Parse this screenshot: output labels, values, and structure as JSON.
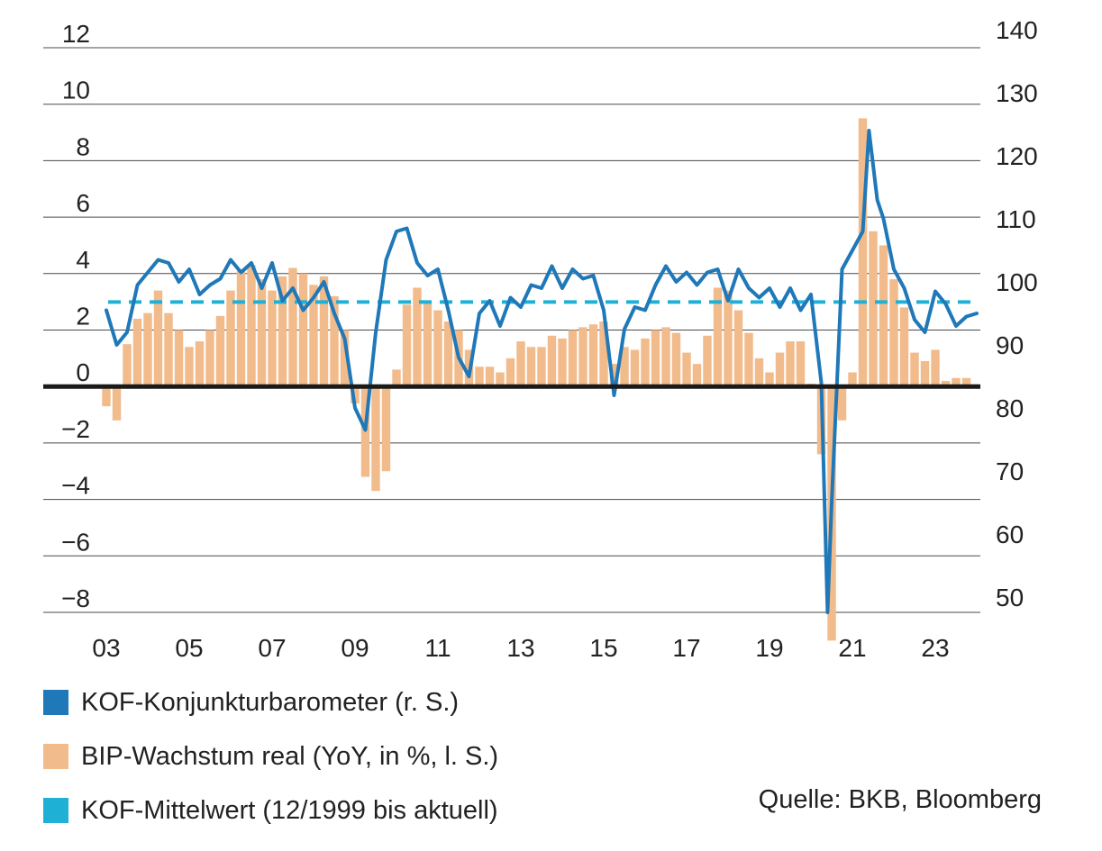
{
  "chart_data": {
    "type": "bar+line",
    "title": "",
    "left_axis": {
      "ticks": [
        "12",
        "10",
        "8",
        "6",
        "4",
        "2",
        "0",
        "−2",
        "−4",
        "−6",
        "−8"
      ],
      "range": [
        -8,
        12
      ]
    },
    "right_axis": {
      "ticks": [
        "140",
        "130",
        "120",
        "110",
        "100",
        "90",
        "80",
        "70",
        "60",
        "50"
      ],
      "range": [
        46,
        140
      ]
    },
    "x_axis": {
      "ticks": [
        "03",
        "05",
        "07",
        "09",
        "11",
        "13",
        "15",
        "17",
        "19",
        "21",
        "23"
      ],
      "range": [
        2003.0,
        2024.0
      ]
    },
    "series": [
      {
        "name": "KOF-Konjunkturbarometer (r. S.)",
        "axis": "right",
        "kind": "line",
        "color": "#1f78b8",
        "points": [
          [
            2003.0,
            95.5
          ],
          [
            2003.25,
            90.0
          ],
          [
            2003.5,
            92.0
          ],
          [
            2003.75,
            99.5
          ],
          [
            2004.0,
            101.5
          ],
          [
            2004.25,
            103.5
          ],
          [
            2004.5,
            103.0
          ],
          [
            2004.75,
            100.0
          ],
          [
            2005.0,
            102.0
          ],
          [
            2005.25,
            98.0
          ],
          [
            2005.5,
            99.5
          ],
          [
            2005.75,
            100.5
          ],
          [
            2006.0,
            103.5
          ],
          [
            2006.25,
            101.5
          ],
          [
            2006.5,
            103.0
          ],
          [
            2006.75,
            99.0
          ],
          [
            2007.0,
            103.0
          ],
          [
            2007.25,
            97.0
          ],
          [
            2007.5,
            99.0
          ],
          [
            2007.75,
            95.5
          ],
          [
            2008.0,
            97.5
          ],
          [
            2008.25,
            100.0
          ],
          [
            2008.5,
            95.0
          ],
          [
            2008.75,
            91.0
          ],
          [
            2009.0,
            80.0
          ],
          [
            2009.25,
            76.5
          ],
          [
            2009.5,
            92.0
          ],
          [
            2009.75,
            103.5
          ],
          [
            2010.0,
            108.0
          ],
          [
            2010.25,
            108.5
          ],
          [
            2010.5,
            103.0
          ],
          [
            2010.75,
            101.0
          ],
          [
            2011.0,
            102.0
          ],
          [
            2011.25,
            95.5
          ],
          [
            2011.5,
            88.0
          ],
          [
            2011.75,
            85.0
          ],
          [
            2012.0,
            95.0
          ],
          [
            2012.25,
            97.0
          ],
          [
            2012.5,
            93.0
          ],
          [
            2012.75,
            97.5
          ],
          [
            2013.0,
            96.0
          ],
          [
            2013.25,
            99.5
          ],
          [
            2013.5,
            99.0
          ],
          [
            2013.75,
            102.5
          ],
          [
            2014.0,
            99.0
          ],
          [
            2014.25,
            102.0
          ],
          [
            2014.5,
            100.5
          ],
          [
            2014.75,
            101.0
          ],
          [
            2015.0,
            95.5
          ],
          [
            2015.25,
            82.0
          ],
          [
            2015.5,
            92.5
          ],
          [
            2015.75,
            96.0
          ],
          [
            2016.0,
            95.5
          ],
          [
            2016.25,
            99.5
          ],
          [
            2016.5,
            102.5
          ],
          [
            2016.75,
            100.0
          ],
          [
            2017.0,
            101.5
          ],
          [
            2017.25,
            99.5
          ],
          [
            2017.5,
            101.5
          ],
          [
            2017.75,
            102.0
          ],
          [
            2018.0,
            97.0
          ],
          [
            2018.25,
            102.0
          ],
          [
            2018.5,
            99.0
          ],
          [
            2018.75,
            97.5
          ],
          [
            2019.0,
            99.0
          ],
          [
            2019.25,
            96.0
          ],
          [
            2019.5,
            99.0
          ],
          [
            2019.75,
            95.5
          ],
          [
            2020.0,
            98.0
          ],
          [
            2020.25,
            84.0
          ],
          [
            2020.4,
            46.0
          ],
          [
            2020.5,
            65.0
          ],
          [
            2020.75,
            102.0
          ],
          [
            2021.0,
            105.0
          ],
          [
            2021.25,
            108.0
          ],
          [
            2021.4,
            124.0
          ],
          [
            2021.6,
            113.0
          ],
          [
            2021.75,
            110.0
          ],
          [
            2022.0,
            102.0
          ],
          [
            2022.25,
            99.0
          ],
          [
            2022.5,
            94.0
          ],
          [
            2022.75,
            92.0
          ],
          [
            2023.0,
            98.5
          ],
          [
            2023.25,
            96.5
          ],
          [
            2023.5,
            93.0
          ],
          [
            2023.75,
            94.5
          ],
          [
            2024.0,
            95.0
          ]
        ]
      },
      {
        "name": "BIP-Wachstum real (YoY, in %, l. S.)",
        "axis": "left",
        "kind": "bar",
        "color": "#f2bb8c",
        "points": [
          [
            2003.0,
            -0.7
          ],
          [
            2003.25,
            -1.2
          ],
          [
            2003.5,
            1.5
          ],
          [
            2003.75,
            2.4
          ],
          [
            2004.0,
            2.6
          ],
          [
            2004.25,
            3.4
          ],
          [
            2004.5,
            2.6
          ],
          [
            2004.75,
            2.0
          ],
          [
            2005.0,
            1.4
          ],
          [
            2005.25,
            1.6
          ],
          [
            2005.5,
            2.0
          ],
          [
            2005.75,
            2.5
          ],
          [
            2006.0,
            3.4
          ],
          [
            2006.25,
            4.1
          ],
          [
            2006.5,
            4.3
          ],
          [
            2006.75,
            3.8
          ],
          [
            2007.0,
            3.4
          ],
          [
            2007.25,
            3.9
          ],
          [
            2007.5,
            4.2
          ],
          [
            2007.75,
            4.0
          ],
          [
            2008.0,
            3.6
          ],
          [
            2008.25,
            3.9
          ],
          [
            2008.5,
            3.2
          ],
          [
            2008.75,
            2.0
          ],
          [
            2009.0,
            -0.6
          ],
          [
            2009.25,
            -3.2
          ],
          [
            2009.5,
            -3.7
          ],
          [
            2009.75,
            -3.0
          ],
          [
            2010.0,
            0.6
          ],
          [
            2010.25,
            2.9
          ],
          [
            2010.5,
            3.5
          ],
          [
            2010.75,
            3.0
          ],
          [
            2011.0,
            2.7
          ],
          [
            2011.25,
            2.3
          ],
          [
            2011.5,
            2.0
          ],
          [
            2011.75,
            1.3
          ],
          [
            2012.0,
            0.7
          ],
          [
            2012.25,
            0.7
          ],
          [
            2012.5,
            0.5
          ],
          [
            2012.75,
            1.0
          ],
          [
            2013.0,
            1.6
          ],
          [
            2013.25,
            1.4
          ],
          [
            2013.5,
            1.4
          ],
          [
            2013.75,
            1.8
          ],
          [
            2014.0,
            1.7
          ],
          [
            2014.25,
            2.0
          ],
          [
            2014.5,
            2.1
          ],
          [
            2014.75,
            2.2
          ],
          [
            2015.0,
            2.3
          ],
          [
            2015.25,
            0.8
          ],
          [
            2015.5,
            1.4
          ],
          [
            2015.75,
            1.3
          ],
          [
            2016.0,
            1.7
          ],
          [
            2016.25,
            2.0
          ],
          [
            2016.5,
            2.1
          ],
          [
            2016.75,
            1.9
          ],
          [
            2017.0,
            1.2
          ],
          [
            2017.25,
            0.8
          ],
          [
            2017.5,
            1.8
          ],
          [
            2017.75,
            3.5
          ],
          [
            2018.0,
            3.4
          ],
          [
            2018.25,
            2.7
          ],
          [
            2018.5,
            1.9
          ],
          [
            2018.75,
            1.0
          ],
          [
            2019.0,
            0.5
          ],
          [
            2019.25,
            1.2
          ],
          [
            2019.5,
            1.6
          ],
          [
            2019.75,
            1.6
          ],
          [
            2020.0,
            0.1
          ],
          [
            2020.25,
            -2.4
          ],
          [
            2020.5,
            -9.0
          ],
          [
            2020.75,
            -1.2
          ],
          [
            2021.0,
            0.5
          ],
          [
            2021.25,
            9.5
          ],
          [
            2021.5,
            5.5
          ],
          [
            2021.75,
            5.0
          ],
          [
            2022.0,
            3.8
          ],
          [
            2022.25,
            2.8
          ],
          [
            2022.5,
            1.2
          ],
          [
            2022.75,
            0.9
          ],
          [
            2023.0,
            1.3
          ],
          [
            2023.25,
            0.2
          ],
          [
            2023.5,
            0.3
          ],
          [
            2023.75,
            0.3
          ]
        ]
      },
      {
        "name": "KOF-Mittelwert (12/1999 bis aktuell)",
        "axis": "right",
        "kind": "dashed-line",
        "color": "#1fb0d6",
        "value": 96.8
      }
    ],
    "grid": "horizontal",
    "legend": "bottom-left"
  },
  "legend": [
    {
      "label": "KOF-Konjunkturbarometer (r. S.)",
      "color": "#1f78b8"
    },
    {
      "label": "BIP-Wachstum real (YoY, in %, l. S.)",
      "color": "#f2bb8c"
    },
    {
      "label": "KOF-Mittelwert (12/1999 bis aktuell)",
      "color": "#1fb0d6"
    }
  ],
  "source": "Quelle: BKB, Bloomberg"
}
